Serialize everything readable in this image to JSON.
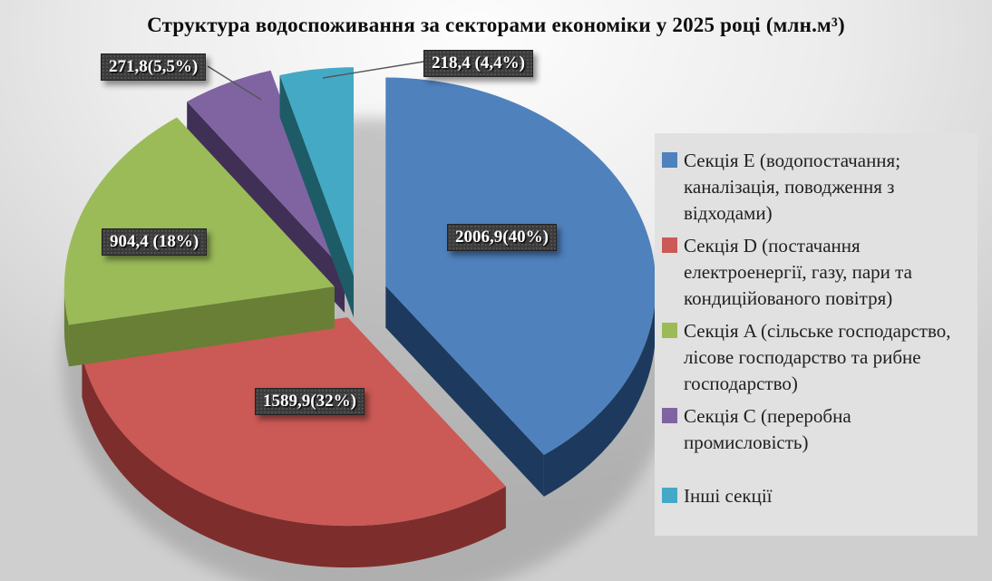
{
  "chart_data": {
    "type": "pie",
    "style": "3d-exploded",
    "title": "Структура водоспоживання за секторами економіки у 2025 році (млн.м³)",
    "unit": "млн.м³",
    "legend_position": "right",
    "grid": false,
    "slices": [
      {
        "id": "section-e",
        "name": "Секція E (водопостачання; каналізація, поводження з відходами)",
        "value": 2006.9,
        "pct": 40,
        "label": "2006,9(40%)",
        "color": "#4F81BD",
        "side_color": "#1D3A5E"
      },
      {
        "id": "section-d",
        "name": "Секція D (постачання електроенергії, газу, пари та кондиційованого повітря)",
        "value": 1589.9,
        "pct": 32,
        "label": "1589,9(32%)",
        "color": "#CB5955",
        "side_color": "#7D2E2C"
      },
      {
        "id": "section-a",
        "name": "Секція A (сільське господарство, лісове господарство та рибне господарство)",
        "value": 904.4,
        "pct": 18,
        "label": "904,4 (18%)",
        "color": "#9BBB59",
        "side_color": "#687F35"
      },
      {
        "id": "section-c",
        "name": "Секція C (переробна промисловість)",
        "value": 271.8,
        "pct": 5.5,
        "label": "271,8(5,5%)",
        "color": "#8064A2",
        "side_color": "#413055"
      },
      {
        "id": "other-sections",
        "name": "Інші секції",
        "value": 218.4,
        "pct": 4.4,
        "label": "218,4 (4,4%)",
        "color": "#44A9C4",
        "side_color": "#1D5C66"
      }
    ]
  },
  "colors": {
    "label_box_bg": "#3B3B3B",
    "label_text": "#FFFFFF",
    "leader_line": "#555555",
    "legend_panel_bg": "#E1E1E1",
    "legend_text": "#212121",
    "title_text": "#0D0D0D"
  }
}
